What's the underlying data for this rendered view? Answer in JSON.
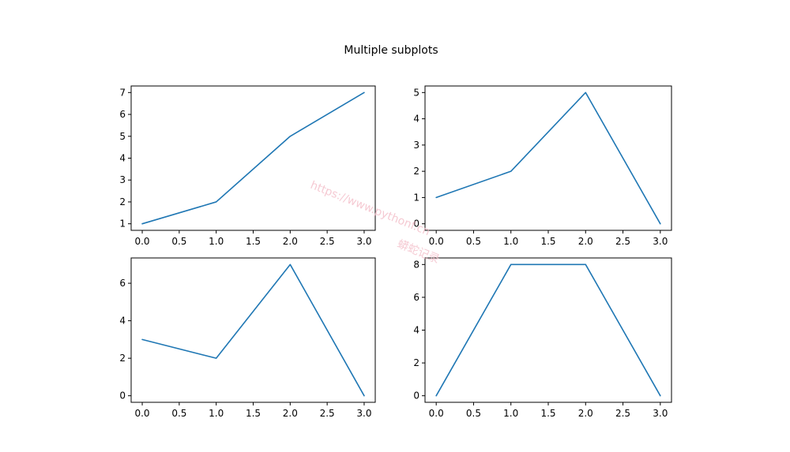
{
  "figure": {
    "title": "Multiple subplots",
    "watermark": [
      "https://www.pythonf.cn",
      "蟒蛇记录"
    ]
  },
  "colors": {
    "line": "#1f77b4",
    "axes": "#000000",
    "background": "#ffffff"
  },
  "chart_data": [
    {
      "type": "line",
      "x": [
        0,
        1,
        2,
        3
      ],
      "series": [
        {
          "values": [
            1,
            2,
            5,
            7
          ]
        }
      ],
      "xlim": [
        -0.15,
        3.15
      ],
      "ylim": [
        0.7,
        7.3
      ],
      "xticks": [
        0.0,
        0.5,
        1.0,
        1.5,
        2.0,
        2.5,
        3.0
      ],
      "xtick_labels": [
        "0.0",
        "0.5",
        "1.0",
        "1.5",
        "2.0",
        "2.5",
        "3.0"
      ],
      "yticks": [
        1,
        2,
        3,
        4,
        5,
        6,
        7
      ],
      "ytick_labels": [
        "1",
        "2",
        "3",
        "4",
        "5",
        "6",
        "7"
      ],
      "grid": false
    },
    {
      "type": "line",
      "x": [
        0,
        1,
        2,
        3
      ],
      "series": [
        {
          "values": [
            1,
            2,
            5,
            0
          ]
        }
      ],
      "xlim": [
        -0.15,
        3.15
      ],
      "ylim": [
        -0.25,
        5.25
      ],
      "xticks": [
        0.0,
        0.5,
        1.0,
        1.5,
        2.0,
        2.5,
        3.0
      ],
      "xtick_labels": [
        "0.0",
        "0.5",
        "1.0",
        "1.5",
        "2.0",
        "2.5",
        "3.0"
      ],
      "yticks": [
        0,
        1,
        2,
        3,
        4,
        5
      ],
      "ytick_labels": [
        "0",
        "1",
        "2",
        "3",
        "4",
        "5"
      ],
      "grid": false
    },
    {
      "type": "line",
      "x": [
        0,
        1,
        2,
        3
      ],
      "series": [
        {
          "values": [
            3,
            2,
            7,
            0
          ]
        }
      ],
      "xlim": [
        -0.15,
        3.15
      ],
      "ylim": [
        -0.35,
        7.35
      ],
      "xticks": [
        0.0,
        0.5,
        1.0,
        1.5,
        2.0,
        2.5,
        3.0
      ],
      "xtick_labels": [
        "0.0",
        "0.5",
        "1.0",
        "1.5",
        "2.0",
        "2.5",
        "3.0"
      ],
      "yticks": [
        0,
        2,
        4,
        6
      ],
      "ytick_labels": [
        "0",
        "2",
        "4",
        "6"
      ],
      "grid": false
    },
    {
      "type": "line",
      "x": [
        0,
        1,
        2,
        3
      ],
      "series": [
        {
          "values": [
            0,
            8,
            8,
            0
          ]
        }
      ],
      "xlim": [
        -0.15,
        3.15
      ],
      "ylim": [
        -0.4,
        8.4
      ],
      "xticks": [
        0.0,
        0.5,
        1.0,
        1.5,
        2.0,
        2.5,
        3.0
      ],
      "xtick_labels": [
        "0.0",
        "0.5",
        "1.0",
        "1.5",
        "2.0",
        "2.5",
        "3.0"
      ],
      "yticks": [
        0,
        2,
        4,
        6,
        8
      ],
      "ytick_labels": [
        "0",
        "2",
        "4",
        "6",
        "8"
      ],
      "grid": false
    }
  ]
}
